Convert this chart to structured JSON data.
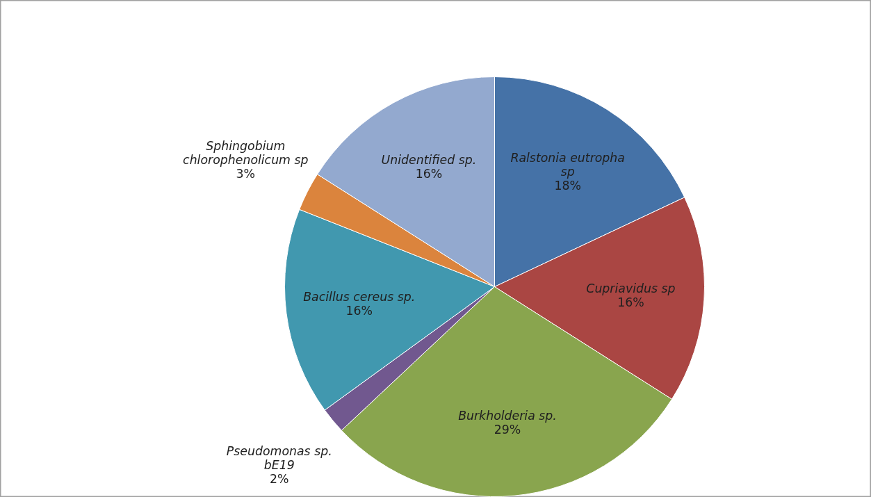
{
  "chart_data": {
    "type": "pie",
    "categories": [
      "Ralstonia eutropha sp",
      "Cupriavidus sp",
      "Burkholderia sp.",
      "Pseudomonas sp. bE19",
      "Bacillus cereus sp.",
      "Sphingobium chlorophenolicum sp",
      "Unidentified sp."
    ],
    "values": [
      18,
      16,
      29,
      2,
      16,
      3,
      16
    ],
    "value_labels": [
      "18%",
      "16%",
      "29%",
      "2%",
      "16%",
      "3%",
      "16%"
    ],
    "colors": [
      "#4572a7",
      "#aa4643",
      "#89a54e",
      "#71588f",
      "#4198af",
      "#db843d",
      "#93a9cf"
    ]
  }
}
